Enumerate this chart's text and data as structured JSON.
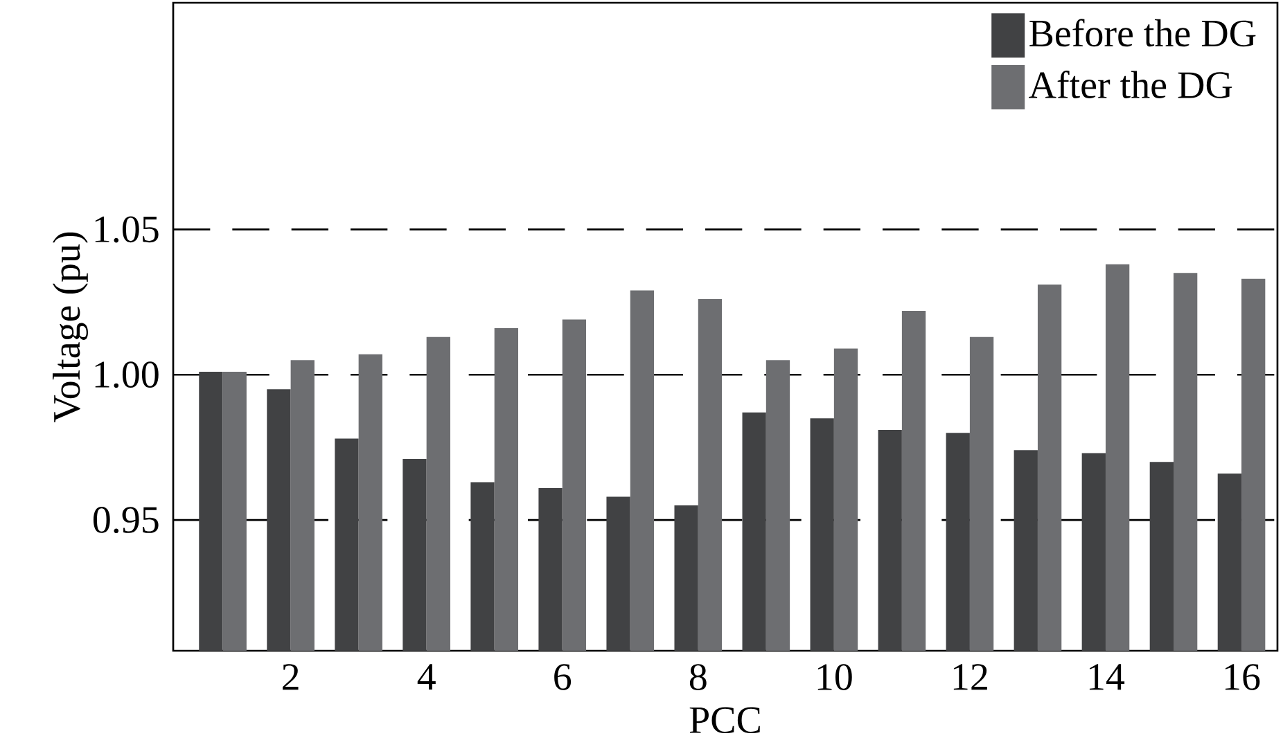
{
  "chart_data": {
    "type": "bar",
    "xlabel": "PCC",
    "ylabel": "Voltage (pu)",
    "x": [
      1,
      2,
      3,
      4,
      5,
      6,
      7,
      8,
      9,
      10,
      11,
      12,
      13,
      14,
      15,
      16
    ],
    "series": [
      {
        "name": "Before the DG",
        "color": "#414244",
        "values": [
          1.001,
          0.995,
          0.978,
          0.971,
          0.963,
          0.961,
          0.958,
          0.955,
          0.987,
          0.985,
          0.981,
          0.98,
          0.974,
          0.973,
          0.97,
          0.966
        ]
      },
      {
        "name": "After the DG",
        "color": "#6d6e71",
        "values": [
          1.001,
          1.005,
          1.007,
          1.013,
          1.016,
          1.019,
          1.029,
          1.026,
          1.005,
          1.009,
          1.022,
          1.013,
          1.031,
          1.038,
          1.035,
          1.033
        ]
      }
    ],
    "xlim": [
      0.27,
      16.53
    ],
    "ylim": [
      0.905,
      1.128
    ],
    "xticks": [
      2,
      4,
      6,
      8,
      10,
      12,
      14,
      16
    ],
    "yticks": [
      {
        "value": 0.95,
        "label": "0.95"
      },
      {
        "value": 1.0,
        "label": "1.00"
      },
      {
        "value": 1.05,
        "label": "1.05"
      }
    ],
    "grid": "y",
    "legend": "top right"
  }
}
